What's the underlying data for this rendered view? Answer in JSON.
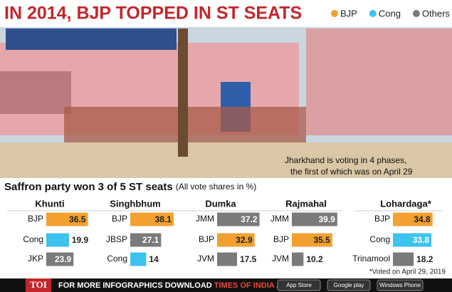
{
  "title": "IN 2014, BJP TOPPED IN ST SEATS",
  "legend": [
    {
      "name": "BJP",
      "color": "#f2a030"
    },
    {
      "name": "Cong",
      "color": "#3cc3ee"
    },
    {
      "name": "Others",
      "color": "#7a7a7a"
    }
  ],
  "caption": [
    "Jharkhand is voting in 4 phases,",
    "the first of which was on April 29"
  ],
  "subtitle": "Saffron party won 3 of 5 ST seats",
  "subtitle_note": "(All vote shares in %)",
  "chart_data": [
    {
      "type": "bar",
      "title": "Khunti",
      "categories": [
        "BJP",
        "Cong",
        "JKP"
      ],
      "values": [
        36.5,
        19.9,
        23.9
      ],
      "colors": [
        "#f2a030",
        "#3cc3ee",
        "#7a7a7a"
      ]
    },
    {
      "type": "bar",
      "title": "Singhbhum",
      "categories": [
        "BJP",
        "JBSP",
        "Cong"
      ],
      "values": [
        38.1,
        27.1,
        14
      ],
      "colors": [
        "#f2a030",
        "#7a7a7a",
        "#3cc3ee"
      ]
    },
    {
      "type": "bar",
      "title": "Dumka",
      "categories": [
        "JMM",
        "BJP",
        "JVM"
      ],
      "values": [
        37.2,
        32.9,
        17.5
      ],
      "colors": [
        "#7a7a7a",
        "#f2a030",
        "#7a7a7a"
      ]
    },
    {
      "type": "bar",
      "title": "Rajmahal",
      "categories": [
        "JMM",
        "BJP",
        "JVM"
      ],
      "values": [
        39.9,
        35.5,
        10.2
      ],
      "colors": [
        "#7a7a7a",
        "#f2a030",
        "#7a7a7a"
      ]
    },
    {
      "type": "bar",
      "title": "Lohardaga*",
      "categories": [
        "BJP",
        "Cong",
        "Trinamool"
      ],
      "values": [
        34.8,
        33.8,
        18.2
      ],
      "colors": [
        "#f2a030",
        "#3cc3ee",
        "#7a7a7a"
      ]
    }
  ],
  "footnote": "*Voted on April 29, 2019",
  "footer": {
    "logo": "TOI",
    "text": "FOR MORE INFOGRAPHICS DOWNLOAD",
    "app": "TIMES OF INDIA APP",
    "badges": [
      "App Store",
      "Google play",
      "Windows Phone"
    ]
  }
}
